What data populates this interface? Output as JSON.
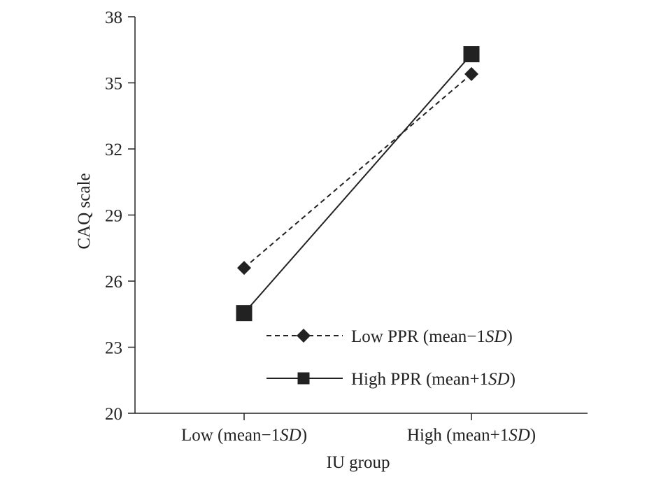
{
  "chart_data": {
    "type": "line",
    "title": "",
    "xlabel": "IU group",
    "ylabel": "CAQ scale",
    "categories": [
      {
        "main": "Low (mean−1",
        "sd": "SD",
        "end": ")"
      },
      {
        "main": "High (mean+1",
        "sd": "SD",
        "end": ")"
      }
    ],
    "ylim": [
      20,
      38
    ],
    "yticks": [
      20,
      23,
      26,
      29,
      32,
      35,
      38
    ],
    "grid": false,
    "legend_position": "bottom-right",
    "series": [
      {
        "name": {
          "main": "Low PPR (mean−1",
          "sd": "SD",
          "end": ")"
        },
        "values": [
          26.6,
          35.4
        ],
        "line_style": "dashed",
        "marker": "diamond",
        "color": "#222222"
      },
      {
        "name": {
          "main": "High PPR (mean+1",
          "sd": "SD",
          "end": ")"
        },
        "values": [
          24.55,
          36.3
        ],
        "line_style": "solid",
        "marker": "square",
        "color": "#222222"
      }
    ]
  }
}
